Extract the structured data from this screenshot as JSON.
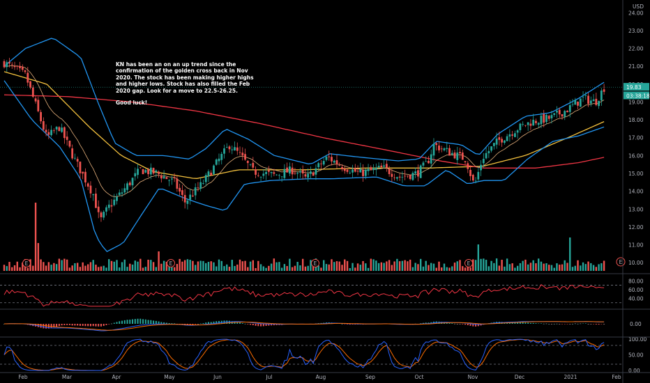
{
  "chart_data": {
    "type": "candlestick",
    "currency_label": "USD",
    "annotation": [
      "KN has been an on an up trend since the confirmation of the golden cross back in Nov 2020. The stock has been making higher highs and higher lows. Stock has also filled the Feb 2020 gap. Look for a move to 22.5-26.25.",
      "Good luck!"
    ],
    "price_tags": [
      {
        "text": "19.83",
        "value": 19.83,
        "color": "#26a69a"
      },
      {
        "text": "03:38:18",
        "value": 19.35,
        "color": "#26a69a"
      }
    ],
    "x_axis_labels": [
      "Feb",
      "Mar",
      "Apr",
      "May",
      "Jun",
      "Jul",
      "Aug",
      "Sep",
      "Oct",
      "Nov",
      "Dec",
      "2021",
      "Feb"
    ],
    "price_axis": {
      "ticks": [
        "24.00",
        "23.00",
        "22.00",
        "21.00",
        "20.00",
        "19.00",
        "18.00",
        "17.00",
        "16.00",
        "15.00",
        "14.00",
        "13.00",
        "12.00",
        "11.00",
        "10.00"
      ],
      "ylim": [
        9.5,
        24.4
      ]
    },
    "price_keypoints": [
      {
        "t": 0,
        "v": 21.2
      },
      {
        "t": 1,
        "v": 20.5
      },
      {
        "t": 2,
        "v": 17.0
      },
      {
        "t": 2.6,
        "v": 17.6
      },
      {
        "t": 3.3,
        "v": 15.8
      },
      {
        "t": 4.2,
        "v": 13.8
      },
      {
        "t": 4.5,
        "v": 12.3
      },
      {
        "t": 4.9,
        "v": 13.1
      },
      {
        "t": 5.5,
        "v": 13.9
      },
      {
        "t": 6.4,
        "v": 15.2
      },
      {
        "t": 7.2,
        "v": 15.0
      },
      {
        "t": 8.0,
        "v": 14.5
      },
      {
        "t": 8.5,
        "v": 13.4
      },
      {
        "t": 9.3,
        "v": 14.4
      },
      {
        "t": 10.0,
        "v": 15.6
      },
      {
        "t": 10.6,
        "v": 16.6
      },
      {
        "t": 11.1,
        "v": 16.0
      },
      {
        "t": 11.7,
        "v": 15.1
      },
      {
        "t": 12.7,
        "v": 14.9
      },
      {
        "t": 13.6,
        "v": 15.2
      },
      {
        "t": 14.2,
        "v": 14.7
      },
      {
        "t": 15.2,
        "v": 15.9
      },
      {
        "t": 15.9,
        "v": 15.4
      },
      {
        "t": 16.7,
        "v": 15.0
      },
      {
        "t": 17.8,
        "v": 15.3
      },
      {
        "t": 18.6,
        "v": 14.8
      },
      {
        "t": 19.4,
        "v": 15.0
      },
      {
        "t": 19.9,
        "v": 15.6
      },
      {
        "t": 20.2,
        "v": 16.6
      },
      {
        "t": 20.9,
        "v": 16.2
      },
      {
        "t": 21.7,
        "v": 15.8
      },
      {
        "t": 22.1,
        "v": 14.3
      },
      {
        "t": 22.5,
        "v": 15.9
      },
      {
        "t": 23.2,
        "v": 16.8
      },
      {
        "t": 24.1,
        "v": 17.5
      },
      {
        "t": 24.8,
        "v": 17.9
      },
      {
        "t": 25.7,
        "v": 18.1
      },
      {
        "t": 26.5,
        "v": 18.6
      },
      {
        "t": 27.2,
        "v": 19.2
      },
      {
        "t": 27.8,
        "v": 19.0
      },
      {
        "t": 28.2,
        "v": 19.8
      }
    ],
    "overlays": {
      "ma_yellow": {
        "color": "#f5c23e",
        "points": [
          {
            "t": 0,
            "v": 20.7
          },
          {
            "t": 2,
            "v": 20.0
          },
          {
            "t": 4,
            "v": 17.6
          },
          {
            "t": 5.5,
            "v": 16.0
          },
          {
            "t": 7,
            "v": 15.1
          },
          {
            "t": 9,
            "v": 14.7
          },
          {
            "t": 11,
            "v": 15.2
          },
          {
            "t": 14,
            "v": 15.2
          },
          {
            "t": 17,
            "v": 15.3
          },
          {
            "t": 20,
            "v": 15.3
          },
          {
            "t": 22.5,
            "v": 15.4
          },
          {
            "t": 24.5,
            "v": 16.0
          },
          {
            "t": 26.5,
            "v": 17.0
          },
          {
            "t": 28.2,
            "v": 17.9
          }
        ]
      },
      "ma_red": {
        "color": "#f23645",
        "points": [
          {
            "t": 0,
            "v": 19.4
          },
          {
            "t": 3,
            "v": 19.3
          },
          {
            "t": 6,
            "v": 19.0
          },
          {
            "t": 9,
            "v": 18.5
          },
          {
            "t": 12,
            "v": 17.8
          },
          {
            "t": 15,
            "v": 17.0
          },
          {
            "t": 18,
            "v": 16.3
          },
          {
            "t": 20.5,
            "v": 15.7
          },
          {
            "t": 22.5,
            "v": 15.3
          },
          {
            "t": 25,
            "v": 15.3
          },
          {
            "t": 27,
            "v": 15.6
          },
          {
            "t": 28.2,
            "v": 15.9
          }
        ]
      },
      "bb_upper": {
        "color": "#2196f3",
        "points": [
          {
            "t": 0,
            "v": 21.0
          },
          {
            "t": 1,
            "v": 22.0
          },
          {
            "t": 2.3,
            "v": 22.6
          },
          {
            "t": 3.6,
            "v": 21.5
          },
          {
            "t": 4.4,
            "v": 19.0
          },
          {
            "t": 5.2,
            "v": 16.7
          },
          {
            "t": 6.2,
            "v": 16.0
          },
          {
            "t": 7.5,
            "v": 16.0
          },
          {
            "t": 8.7,
            "v": 15.8
          },
          {
            "t": 9.5,
            "v": 16.4
          },
          {
            "t": 10.4,
            "v": 17.5
          },
          {
            "t": 11.5,
            "v": 16.9
          },
          {
            "t": 12.7,
            "v": 16.0
          },
          {
            "t": 14.4,
            "v": 15.5
          },
          {
            "t": 15.3,
            "v": 16.1
          },
          {
            "t": 16.8,
            "v": 15.9
          },
          {
            "t": 18.5,
            "v": 15.7
          },
          {
            "t": 19.5,
            "v": 15.8
          },
          {
            "t": 20.3,
            "v": 16.8
          },
          {
            "t": 21.5,
            "v": 16.6
          },
          {
            "t": 22.3,
            "v": 16.0
          },
          {
            "t": 23.2,
            "v": 17.2
          },
          {
            "t": 24.5,
            "v": 18.2
          },
          {
            "t": 25.7,
            "v": 18.4
          },
          {
            "t": 27.0,
            "v": 19.2
          },
          {
            "t": 28.2,
            "v": 20.1
          }
        ]
      },
      "bb_lower": {
        "color": "#2196f3",
        "points": [
          {
            "t": 0,
            "v": 20.2
          },
          {
            "t": 1.3,
            "v": 18.0
          },
          {
            "t": 2.6,
            "v": 16.5
          },
          {
            "t": 3.6,
            "v": 14.7
          },
          {
            "t": 4.3,
            "v": 11.5
          },
          {
            "t": 4.8,
            "v": 10.6
          },
          {
            "t": 5.6,
            "v": 11.1
          },
          {
            "t": 6.3,
            "v": 12.4
          },
          {
            "t": 7.3,
            "v": 14.2
          },
          {
            "t": 8.5,
            "v": 13.6
          },
          {
            "t": 9.5,
            "v": 13.2
          },
          {
            "t": 10.4,
            "v": 12.9
          },
          {
            "t": 11.3,
            "v": 14.4
          },
          {
            "t": 12.5,
            "v": 14.6
          },
          {
            "t": 14.3,
            "v": 14.7
          },
          {
            "t": 15.4,
            "v": 14.7
          },
          {
            "t": 17.5,
            "v": 14.8
          },
          {
            "t": 18.8,
            "v": 14.3
          },
          {
            "t": 19.8,
            "v": 14.3
          },
          {
            "t": 20.8,
            "v": 15.2
          },
          {
            "t": 21.8,
            "v": 14.4
          },
          {
            "t": 22.5,
            "v": 14.6
          },
          {
            "t": 23.5,
            "v": 14.6
          },
          {
            "t": 24.6,
            "v": 15.8
          },
          {
            "t": 25.8,
            "v": 16.8
          },
          {
            "t": 27.0,
            "v": 17.1
          },
          {
            "t": 28.2,
            "v": 17.6
          }
        ]
      }
    },
    "rsi": {
      "ticks": [
        "80.00",
        "60.00",
        "40.00"
      ],
      "levels": [
        70,
        30
      ],
      "color": "#f23645"
    },
    "macd": {
      "ticks": [
        "0.00"
      ],
      "macd_color": "#2962ff",
      "signal_color": "#ff6d00"
    },
    "stoch": {
      "ticks": [
        "100.00",
        "50.00",
        "0.00"
      ],
      "k_color": "#2962ff",
      "d_color": "#ff6d00"
    },
    "event_marker": "E",
    "colors": {
      "up": "#26a69a",
      "down": "#ef5350",
      "up_vol": "#26a69a",
      "down_vol": "#ef5350",
      "background": "#000000",
      "divider": "#363a45",
      "axis_text": "#b2b5be"
    }
  }
}
